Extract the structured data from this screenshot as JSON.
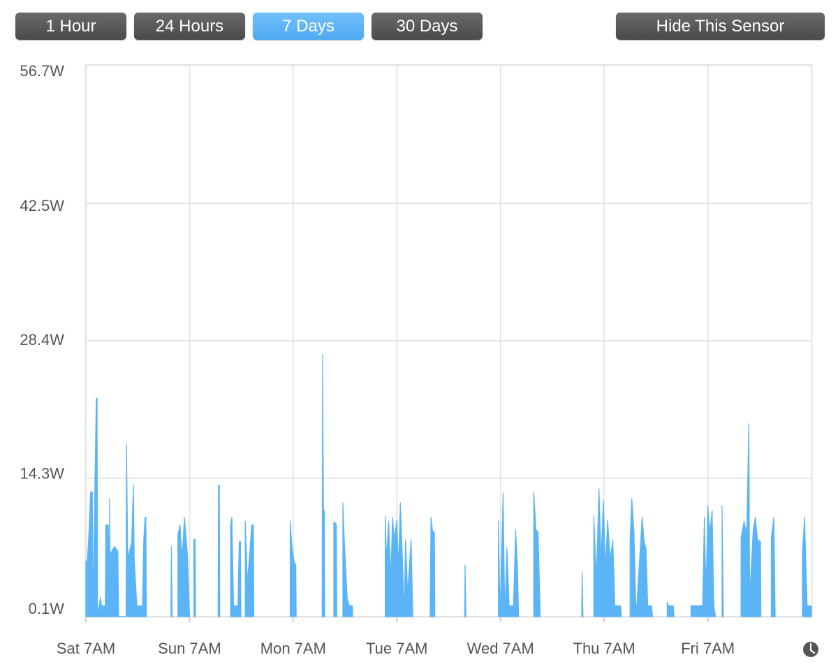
{
  "toolbar": {
    "buttons": [
      "1 Hour",
      "24 Hours",
      "7 Days",
      "30 Days"
    ],
    "active": 2,
    "hide_button": "Hide This Sensor"
  },
  "chart_data": {
    "type": "area",
    "color": "#5ab4f5",
    "grid": true,
    "xlim": [
      0,
      168
    ],
    "xticks": [
      {
        "value": 0,
        "label": "Sat 7AM"
      },
      {
        "value": 24,
        "label": "Sun 7AM"
      },
      {
        "value": 48,
        "label": "Mon 7AM"
      },
      {
        "value": 72,
        "label": "Tue 7AM"
      },
      {
        "value": 96,
        "label": "Wed 7AM"
      },
      {
        "value": 120,
        "label": "Thu 7AM"
      },
      {
        "value": 144,
        "label": "Fri 7AM"
      }
    ],
    "ylim": [
      0.1,
      56.7
    ],
    "yticks": [
      {
        "value": 0.1,
        "label": "0.1W"
      },
      {
        "value": 14.3,
        "label": "14.3W"
      },
      {
        "value": 28.4,
        "label": "28.4W"
      },
      {
        "value": 42.5,
        "label": "42.5W"
      },
      {
        "value": 56.7,
        "label": "56.7W"
      }
    ],
    "x": [
      0,
      0.3,
      0.6,
      1.1,
      1.5,
      1.6,
      2.4,
      2.6,
      2.7,
      3.4,
      3.6,
      4.5,
      4.6,
      5.2,
      5.4,
      5.5,
      5.6,
      6.6,
      7.4,
      7.6,
      9.3,
      9.4,
      9.7,
      10.6,
      11.0,
      11.2,
      11.8,
      13.1,
      13.4,
      13.7,
      13.9,
      14.0,
      null,
      19.7,
      19.8,
      20.0,
      null,
      21.3,
      21.8,
      22.3,
      22.8,
      23.5,
      24.0,
      null,
      25.0,
      25.3,
      25.4,
      null,
      30.6,
      30.7,
      30.9,
      31.0,
      null,
      33.5,
      33.8,
      34.2,
      35.2,
      35.5,
      35.8,
      35.9,
      null,
      36.9,
      37.4,
      38.4,
      38.8,
      38.9,
      null,
      47.3,
      47.7,
      48.3,
      48.6,
      48.7,
      null,
      54.7,
      54.8,
      55.0,
      55.2,
      55.3,
      null,
      57.4,
      58.0,
      58.1,
      null,
      59.5,
      59.8,
      60.5,
      61.0,
      61.7,
      61.8,
      null,
      69.3,
      69.6,
      70.1,
      70.6,
      71.0,
      71.4,
      72.0,
      72.4,
      72.8,
      73.3,
      73.7,
      74.0,
      74.5,
      75.3,
      75.7,
      null,
      79.7,
      79.9,
      80.3,
      80.7,
      80.8,
      null,
      87.7,
      87.8,
      88.0,
      null,
      95.5,
      95.9,
      96.6,
      97.0,
      97.5,
      98.0,
      99.0,
      99.5,
      99.9,
      100.2,
      null,
      103.7,
      104.2,
      104.7,
      105.2,
      null,
      114.8,
      114.9,
      115.1,
      null,
      117.6,
      118.2,
      118.8,
      119.3,
      119.8,
      120.3,
      120.8,
      121.4,
      122.0,
      122.5,
      123.8,
      124.0,
      null,
      126.0,
      126.4,
      126.9,
      127.4,
      128.8,
      129.2,
      129.7,
      130.1,
      131.0,
      131.2,
      null,
      134.6,
      134.9,
      136.0,
      136.2,
      null,
      140.1,
      142.8,
      143.2,
      143.6,
      144.0,
      144.5,
      145.0,
      145.4,
      145.8,
      null,
      147.3,
      147.6,
      null,
      151.7,
      152.4,
      153.0,
      153.5,
      153.7,
      154.5,
      155.0,
      155.5,
      156.2,
      156.3,
      null,
      158.7,
      159.3,
      159.6,
      null,
      165.9,
      166.4,
      167.0,
      168
    ],
    "values": [
      5.8,
      5.8,
      7.8,
      12.9,
      12.9,
      0.1,
      22.5,
      22.5,
      0.1,
      2.1,
      1.2,
      1.2,
      9.5,
      9.5,
      0.1,
      12.2,
      6.5,
      7.3,
      6.8,
      0.1,
      0.1,
      17.8,
      6.0,
      7.8,
      13.6,
      6.0,
      1.2,
      1.2,
      8.0,
      10.3,
      10.3,
      0.1,
      null,
      0.1,
      7.3,
      0.1,
      null,
      8.5,
      9.5,
      6.0,
      10.3,
      6.5,
      0.1,
      null,
      8.0,
      8.0,
      0.1,
      null,
      0.1,
      13.6,
      13.6,
      0.1,
      null,
      9.5,
      10.3,
      1.2,
      1.2,
      7.8,
      7.8,
      0.1,
      null,
      9.9,
      3.5,
      9.5,
      9.5,
      0.1,
      null,
      9.9,
      7.3,
      5.5,
      5.5,
      0.1,
      null,
      0.1,
      27.0,
      11.0,
      11.0,
      0.1,
      null,
      9.8,
      9.6,
      0.1,
      null,
      11.8,
      8.2,
      2.0,
      1.2,
      1.2,
      0.1,
      null,
      10.4,
      6.0,
      9.9,
      4.0,
      10.3,
      8.0,
      10.0,
      5.0,
      11.8,
      6.0,
      0.1,
      8.0,
      2.5,
      8.0,
      0.1,
      null,
      0.1,
      10.3,
      8.8,
      8.8,
      0.1,
      null,
      0.1,
      5.4,
      0.1,
      null,
      9.9,
      0.1,
      12.8,
      0.1,
      7.2,
      1.2,
      1.2,
      9.0,
      5.5,
      0.1,
      null,
      12.9,
      9.0,
      8.8,
      0.1,
      null,
      0.1,
      4.6,
      0.1,
      null,
      10.4,
      4.0,
      13.2,
      6.0,
      12.0,
      5.0,
      10.0,
      6.0,
      8.0,
      1.2,
      1.2,
      0.1,
      null,
      8.0,
      12.2,
      8.8,
      0.1,
      10.3,
      8.0,
      7.0,
      1.2,
      1.2,
      0.1,
      null,
      1.6,
      1.2,
      1.2,
      0.1,
      null,
      1.2,
      1.2,
      10.3,
      2.5,
      11.5,
      8.7,
      11.0,
      1.2,
      0.1,
      null,
      11.5,
      0.1,
      null,
      8.2,
      9.9,
      8.5,
      19.9,
      2.0,
      9.0,
      10.3,
      8.0,
      7.8,
      0.1,
      null,
      8.2,
      10.3,
      0.1,
      null,
      6.7,
      10.3,
      1.2,
      1.2
    ]
  }
}
